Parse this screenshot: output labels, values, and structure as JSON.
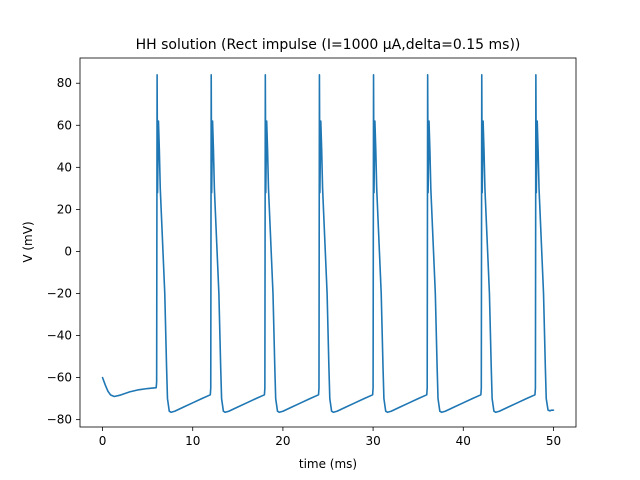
{
  "chart_data": {
    "type": "line",
    "title": "HH solution (Rect impulse (I=1000 µA,delta=0.15 ms))",
    "xlabel": "time (ms)",
    "ylabel": "V (mV)",
    "xlim": [
      -2.5,
      52.5
    ],
    "ylim": [
      -83.5,
      92.0
    ],
    "xticks": [
      0,
      10,
      20,
      30,
      40,
      50
    ],
    "xtick_labels": [
      "0",
      "10",
      "20",
      "30",
      "40",
      "50"
    ],
    "yticks": [
      -80,
      -60,
      -40,
      -20,
      0,
      20,
      40,
      60,
      80
    ],
    "ytick_labels": [
      "−80",
      "−60",
      "−40",
      "−20",
      "0",
      "20",
      "40",
      "60",
      "80"
    ],
    "grid": false,
    "line_color": "#1f77b4",
    "series": [
      {
        "x": [
          0.0,
          0.3,
          0.6,
          0.9,
          1.3,
          2.0,
          3.0,
          4.0,
          5.0,
          5.95,
          6.0,
          6.05,
          6.1,
          6.2,
          6.3,
          6.4,
          6.6,
          6.9,
          7.1,
          7.2,
          7.4,
          7.6,
          8.0,
          8.5,
          9.0,
          10.0,
          11.0,
          11.95,
          12.0,
          12.05,
          12.1,
          12.2,
          12.3,
          12.4,
          12.6,
          12.9,
          13.1,
          13.2,
          13.4,
          13.6,
          14.0,
          14.5,
          15.0,
          16.0,
          17.0,
          17.95,
          18.0,
          18.05,
          18.1,
          18.2,
          18.3,
          18.4,
          18.6,
          18.9,
          19.1,
          19.2,
          19.4,
          19.6,
          20.0,
          20.5,
          21.0,
          22.0,
          23.0,
          23.95,
          24.0,
          24.05,
          24.1,
          24.2,
          24.3,
          24.4,
          24.6,
          24.9,
          25.1,
          25.2,
          25.4,
          25.6,
          26.0,
          26.5,
          27.0,
          28.0,
          29.0,
          29.95,
          30.0,
          30.05,
          30.1,
          30.2,
          30.3,
          30.4,
          30.6,
          30.9,
          31.1,
          31.2,
          31.4,
          31.6,
          32.0,
          32.5,
          33.0,
          34.0,
          35.0,
          35.95,
          36.0,
          36.05,
          36.1,
          36.2,
          36.3,
          36.4,
          36.6,
          36.9,
          37.1,
          37.2,
          37.4,
          37.6,
          38.0,
          38.5,
          39.0,
          40.0,
          41.0,
          41.95,
          42.0,
          42.05,
          42.1,
          42.2,
          42.3,
          42.4,
          42.6,
          42.9,
          43.1,
          43.2,
          43.4,
          43.6,
          44.0,
          44.5,
          45.0,
          46.0,
          47.0,
          47.95,
          48.0,
          48.05,
          48.1,
          48.2,
          48.3,
          48.4,
          48.6,
          48.9,
          49.1,
          49.2,
          49.4,
          49.6,
          49.8,
          50.0
        ],
        "y": [
          -60.0,
          -63.5,
          -66.5,
          -68.3,
          -69.0,
          -68.3,
          -66.8,
          -65.8,
          -65.2,
          -64.8,
          -62.0,
          84.0,
          28.0,
          62.0,
          48.0,
          30.0,
          10.0,
          -20.0,
          -55.0,
          -70.0,
          -76.0,
          -76.5,
          -76.0,
          -75.0,
          -74.0,
          -72.0,
          -70.0,
          -68.2,
          -65.0,
          84.0,
          28.0,
          62.0,
          48.0,
          30.0,
          10.0,
          -20.0,
          -55.0,
          -70.0,
          -76.0,
          -76.5,
          -76.0,
          -75.0,
          -74.0,
          -72.0,
          -70.0,
          -68.2,
          -65.0,
          84.0,
          28.0,
          62.0,
          48.0,
          30.0,
          10.0,
          -20.0,
          -55.0,
          -70.0,
          -76.0,
          -76.5,
          -76.0,
          -75.0,
          -74.0,
          -72.0,
          -70.0,
          -68.2,
          -65.0,
          84.0,
          28.0,
          62.0,
          48.0,
          30.0,
          10.0,
          -20.0,
          -55.0,
          -70.0,
          -76.0,
          -76.5,
          -76.0,
          -75.0,
          -74.0,
          -72.0,
          -70.0,
          -68.2,
          -65.0,
          84.0,
          28.0,
          62.0,
          48.0,
          30.0,
          10.0,
          -20.0,
          -55.0,
          -70.0,
          -76.0,
          -76.5,
          -76.0,
          -75.0,
          -74.0,
          -72.0,
          -70.0,
          -68.2,
          -65.0,
          84.0,
          28.0,
          62.0,
          48.0,
          30.0,
          10.0,
          -20.0,
          -55.0,
          -70.0,
          -76.0,
          -76.5,
          -76.0,
          -75.0,
          -74.0,
          -72.0,
          -70.0,
          -68.2,
          -65.0,
          84.0,
          28.0,
          62.0,
          48.0,
          30.0,
          10.0,
          -20.0,
          -55.0,
          -70.0,
          -76.0,
          -76.5,
          -76.0,
          -75.0,
          -74.0,
          -72.0,
          -70.0,
          -68.2,
          -65.0,
          84.0,
          28.0,
          62.0,
          48.0,
          30.0,
          10.0,
          -20.0,
          -55.0,
          -70.0,
          -75.5,
          -75.8,
          -75.5,
          -75.5
        ]
      }
    ]
  }
}
